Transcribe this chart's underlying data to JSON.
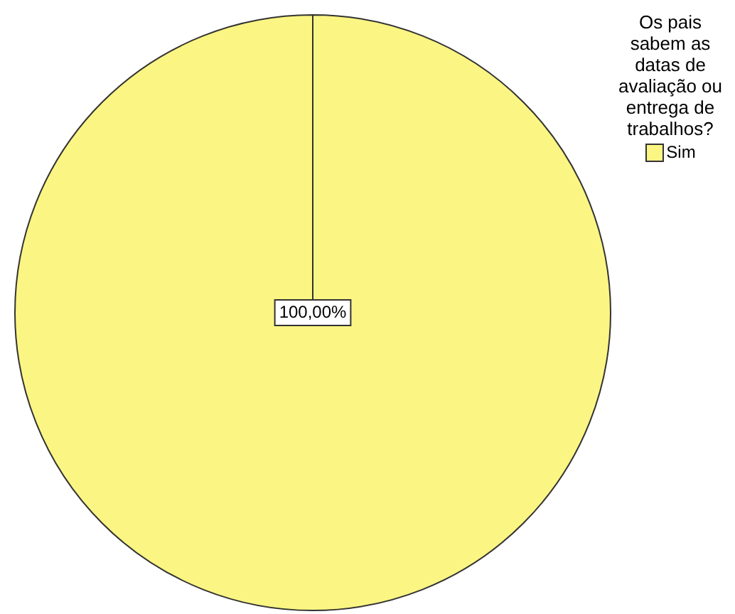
{
  "chart_data": {
    "type": "pie",
    "legend_title": "Os pais sabem as datas de avaliação ou entrega de trabalhos?",
    "categories": [
      "Sim"
    ],
    "values": [
      100
    ],
    "colors": [
      "#fbf583"
    ],
    "value_labels": [
      "100,00%"
    ],
    "legend": "top right"
  }
}
